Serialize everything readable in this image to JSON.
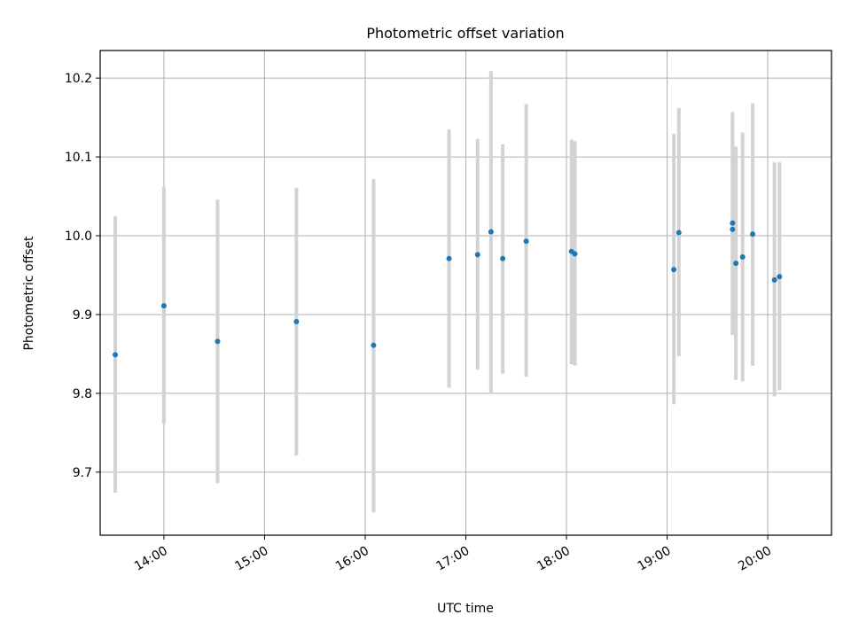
{
  "chart_data": {
    "type": "scatter",
    "title": "Photometric offset variation",
    "xlabel": "UTC time",
    "ylabel": "Photometric offset",
    "x_ticks": [
      "14:00",
      "15:00",
      "16:00",
      "17:00",
      "18:00",
      "19:00",
      "20:00"
    ],
    "y_ticks": [
      "9.7",
      "9.8",
      "9.9",
      "10.0",
      "10.1",
      "10.2"
    ],
    "xlim": [
      "13:22",
      "20:38"
    ],
    "ylim": [
      9.62,
      10.235
    ],
    "grid": true,
    "colors": {
      "marker": "#1f77b4",
      "errorbar": "#d3d3d3",
      "grid": "#b0b0b0"
    },
    "points": [
      {
        "x": "13:31",
        "y": 9.849,
        "ylow": 9.674,
        "yhigh": 10.025
      },
      {
        "x": "14:00",
        "y": 9.911,
        "ylow": 9.761,
        "yhigh": 10.062
      },
      {
        "x": "14:32",
        "y": 9.866,
        "ylow": 9.686,
        "yhigh": 10.046
      },
      {
        "x": "15:19",
        "y": 9.891,
        "ylow": 9.721,
        "yhigh": 10.061
      },
      {
        "x": "16:05",
        "y": 9.861,
        "ylow": 9.649,
        "yhigh": 10.072
      },
      {
        "x": "16:50",
        "y": 9.971,
        "ylow": 9.807,
        "yhigh": 10.135
      },
      {
        "x": "17:07",
        "y": 9.976,
        "ylow": 9.83,
        "yhigh": 10.123
      },
      {
        "x": "17:15",
        "y": 10.005,
        "ylow": 9.801,
        "yhigh": 10.209
      },
      {
        "x": "17:22",
        "y": 9.971,
        "ylow": 9.825,
        "yhigh": 10.116
      },
      {
        "x": "17:36",
        "y": 9.993,
        "ylow": 9.821,
        "yhigh": 10.167
      },
      {
        "x": "18:03",
        "y": 9.98,
        "ylow": 9.837,
        "yhigh": 10.122
      },
      {
        "x": "18:05",
        "y": 9.977,
        "ylow": 9.835,
        "yhigh": 10.12
      },
      {
        "x": "19:04",
        "y": 9.957,
        "ylow": 9.786,
        "yhigh": 10.129
      },
      {
        "x": "19:07",
        "y": 10.004,
        "ylow": 9.847,
        "yhigh": 10.162
      },
      {
        "x": "19:39",
        "y": 10.008,
        "ylow": 9.874,
        "yhigh": 10.143
      },
      {
        "x": "19:39",
        "y": 10.016,
        "ylow": 9.875,
        "yhigh": 10.157
      },
      {
        "x": "19:41",
        "y": 9.965,
        "ylow": 9.817,
        "yhigh": 10.113
      },
      {
        "x": "19:45",
        "y": 9.973,
        "ylow": 9.815,
        "yhigh": 10.131
      },
      {
        "x": "19:51",
        "y": 10.002,
        "ylow": 9.835,
        "yhigh": 10.168
      },
      {
        "x": "20:04",
        "y": 9.944,
        "ylow": 9.796,
        "yhigh": 10.093
      },
      {
        "x": "20:07",
        "y": 9.948,
        "ylow": 9.804,
        "yhigh": 10.093
      }
    ]
  }
}
